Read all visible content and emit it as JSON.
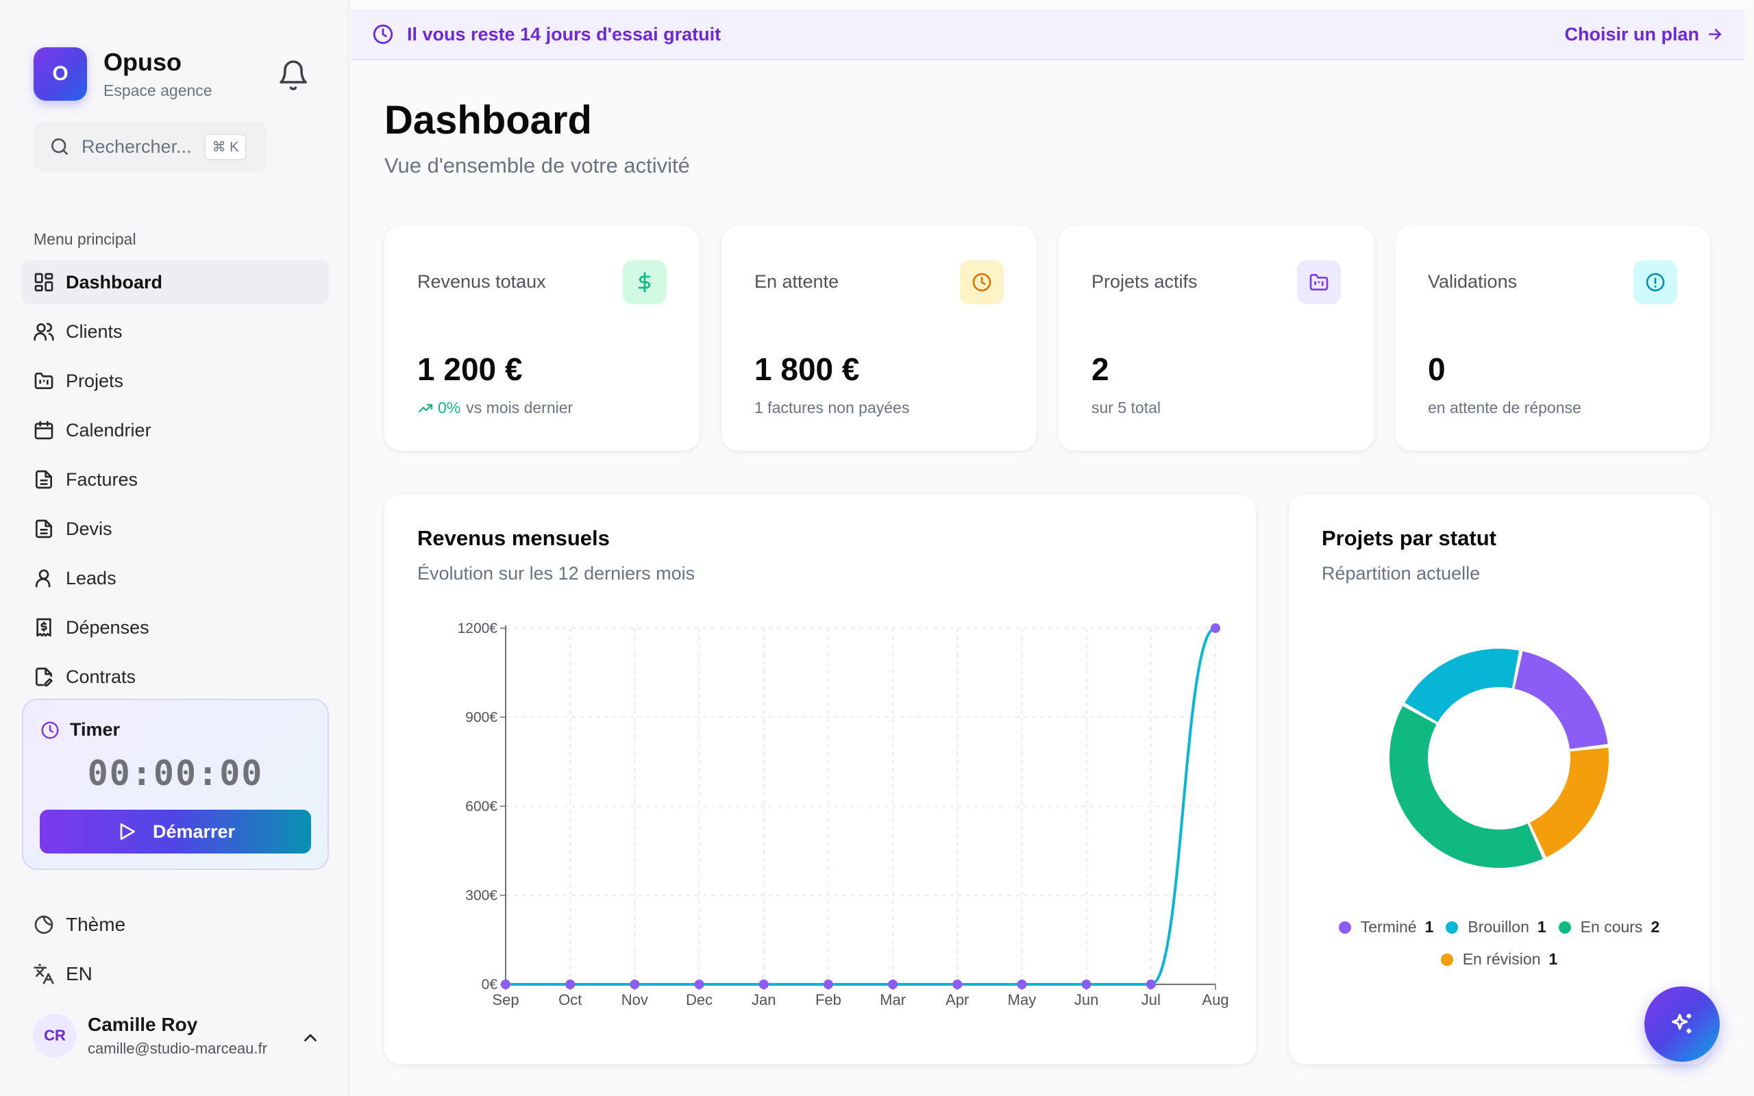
{
  "brand": {
    "logo_letter": "O",
    "name": "Opuso",
    "subtitle": "Espace agence"
  },
  "search": {
    "placeholder": "Rechercher...",
    "shortcut": "⌘ K"
  },
  "menu": {
    "title": "Menu principal",
    "items": [
      {
        "label": "Dashboard",
        "icon": "dashboard-icon",
        "active": true
      },
      {
        "label": "Clients",
        "icon": "users-icon"
      },
      {
        "label": "Projets",
        "icon": "folder-icon"
      },
      {
        "label": "Calendrier",
        "icon": "calendar-icon"
      },
      {
        "label": "Factures",
        "icon": "file-text-icon"
      },
      {
        "label": "Devis",
        "icon": "file-text-icon"
      },
      {
        "label": "Leads",
        "icon": "user-icon"
      },
      {
        "label": "Dépenses",
        "icon": "receipt-icon"
      },
      {
        "label": "Contrats",
        "icon": "file-pen-icon"
      }
    ]
  },
  "timer": {
    "title": "Timer",
    "time": "00:00:00",
    "button": "Démarrer"
  },
  "sidebar_bottom": {
    "theme": "Thème",
    "language": "EN"
  },
  "user": {
    "initials": "CR",
    "name": "Camille Roy",
    "email": "camille@studio-marceau.fr"
  },
  "banner": {
    "text": "Il vous reste 14 jours d'essai gratuit",
    "cta": "Choisir un plan"
  },
  "page": {
    "title": "Dashboard",
    "subtitle": "Vue d'ensemble de votre activité"
  },
  "stats": [
    {
      "label": "Revenus totaux",
      "value": "1 200 €",
      "delta": "0%",
      "foot": "vs mois dernier",
      "icon": "dollar-icon",
      "color": "#10b981",
      "bg": "#d1fae5"
    },
    {
      "label": "En attente",
      "value": "1 800 €",
      "foot": "1 factures non payées",
      "icon": "clock-icon",
      "color": "#d97706",
      "bg": "#fef3c7"
    },
    {
      "label": "Projets actifs",
      "value": "2",
      "foot": "sur 5 total",
      "icon": "folder-kanban-icon",
      "color": "#7c3aed",
      "bg": "#ede9fe"
    },
    {
      "label": "Validations",
      "value": "0",
      "foot": "en attente de réponse",
      "icon": "alert-circle-icon",
      "color": "#0891b2",
      "bg": "#cffafe"
    }
  ],
  "revenue_card": {
    "title": "Revenus mensuels",
    "subtitle": "Évolution sur les 12 derniers mois"
  },
  "status_card": {
    "title": "Projets par statut",
    "subtitle": "Répartition actuelle"
  },
  "colors": {
    "accent": "#6d28d9",
    "line": "#06b6d4",
    "point": "#8b5cf6"
  },
  "chart_data": [
    {
      "type": "line",
      "title": "Revenus mensuels",
      "categories": [
        "Sep",
        "Oct",
        "Nov",
        "Dec",
        "Jan",
        "Feb",
        "Mar",
        "Apr",
        "May",
        "Jun",
        "Jul",
        "Aug"
      ],
      "values": [
        0,
        0,
        0,
        0,
        0,
        0,
        0,
        0,
        0,
        0,
        0,
        1200
      ],
      "ylim": [
        0,
        1200
      ],
      "yticks": [
        0,
        300,
        600,
        900,
        1200
      ],
      "ytick_labels": [
        "0€",
        "300€",
        "600€",
        "900€",
        "1200€"
      ],
      "grid": true
    },
    {
      "type": "pie",
      "title": "Projets par statut",
      "slices": [
        {
          "label": "Terminé",
          "value": 1,
          "color": "#8b5cf6"
        },
        {
          "label": "En révision",
          "value": 1,
          "color": "#f59e0b"
        },
        {
          "label": "En cours",
          "value": 2,
          "color": "#10b981"
        },
        {
          "label": "Brouillon",
          "value": 1,
          "color": "#06b6d4"
        }
      ],
      "legend_order": [
        "Terminé",
        "Brouillon",
        "En cours",
        "En révision"
      ],
      "legend_placement": "bottom"
    }
  ]
}
